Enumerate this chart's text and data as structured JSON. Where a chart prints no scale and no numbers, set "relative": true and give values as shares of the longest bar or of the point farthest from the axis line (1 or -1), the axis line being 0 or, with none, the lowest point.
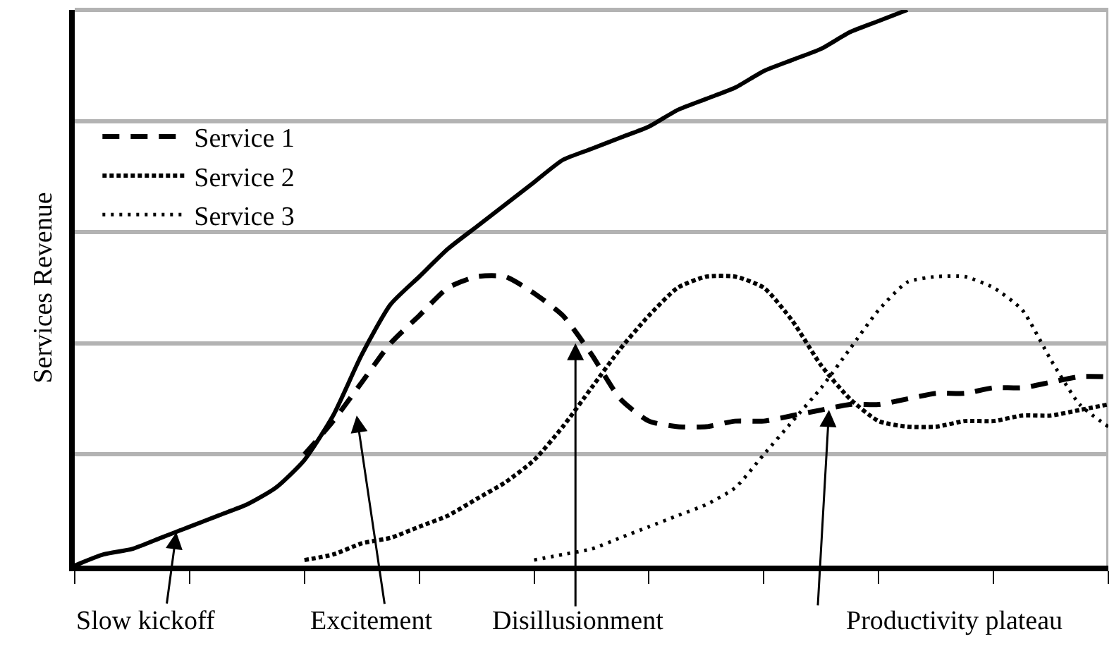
{
  "chart_data": {
    "type": "line",
    "relative": true,
    "ylabel": "Services Revenue",
    "categories": [
      null,
      null,
      null,
      null,
      null,
      null,
      null,
      null,
      null,
      null,
      null,
      null,
      null,
      null,
      null,
      null,
      null,
      null,
      null,
      null,
      null,
      null,
      null,
      null,
      null,
      null,
      null,
      null,
      null,
      null,
      null,
      null,
      null,
      null,
      null,
      null,
      null
    ],
    "series": [
      {
        "color": "#000000",
        "line_style": "solid",
        "values": [
          0.0,
          0.02,
          0.03,
          0.05,
          0.07,
          0.09,
          0.11,
          0.14,
          0.19,
          0.27,
          0.38,
          0.47,
          0.52,
          0.57,
          0.61,
          0.65,
          0.69,
          0.73,
          0.75,
          0.77,
          0.79,
          0.82,
          0.84,
          0.86,
          0.89,
          0.91,
          0.93,
          0.96,
          0.98,
          1.0,
          null,
          null,
          null,
          null,
          null,
          null,
          null
        ]
      },
      {
        "name": "Service 1",
        "color": "#000000",
        "line_style": "dashed",
        "values": [
          null,
          null,
          null,
          null,
          null,
          null,
          null,
          null,
          0.2,
          0.26,
          0.33,
          0.4,
          0.45,
          0.5,
          0.52,
          0.52,
          0.49,
          0.45,
          0.38,
          0.3,
          0.26,
          0.25,
          0.25,
          0.26,
          0.26,
          0.27,
          0.28,
          0.29,
          0.29,
          0.3,
          0.31,
          0.31,
          0.32,
          0.32,
          0.33,
          0.34,
          0.34
        ]
      },
      {
        "name": "Service 2",
        "color": "#000000",
        "line_style": "dotted",
        "values": [
          null,
          null,
          null,
          null,
          null,
          null,
          null,
          null,
          0.01,
          0.02,
          0.04,
          0.05,
          0.07,
          0.09,
          0.12,
          0.15,
          0.19,
          0.25,
          0.32,
          0.39,
          0.45,
          0.5,
          0.52,
          0.52,
          0.5,
          0.44,
          0.36,
          0.3,
          0.26,
          0.25,
          0.25,
          0.26,
          0.26,
          0.27,
          0.27,
          0.28,
          0.29
        ]
      },
      {
        "name": "Service 3",
        "color": "#000000",
        "line_style": "sparse_dotted",
        "values": [
          null,
          null,
          null,
          null,
          null,
          null,
          null,
          null,
          null,
          null,
          null,
          null,
          null,
          null,
          null,
          null,
          0.01,
          0.02,
          0.03,
          0.05,
          0.07,
          0.09,
          0.11,
          0.14,
          0.2,
          0.26,
          0.32,
          0.39,
          0.46,
          0.51,
          0.52,
          0.52,
          0.5,
          0.46,
          0.37,
          0.29,
          0.25
        ]
      }
    ],
    "annotations": [
      "Slow kickoff",
      "Excitement",
      "Disillusionment",
      "Productivity plateau"
    ],
    "grid": "y",
    "legend": "top left",
    "marker": "none"
  }
}
